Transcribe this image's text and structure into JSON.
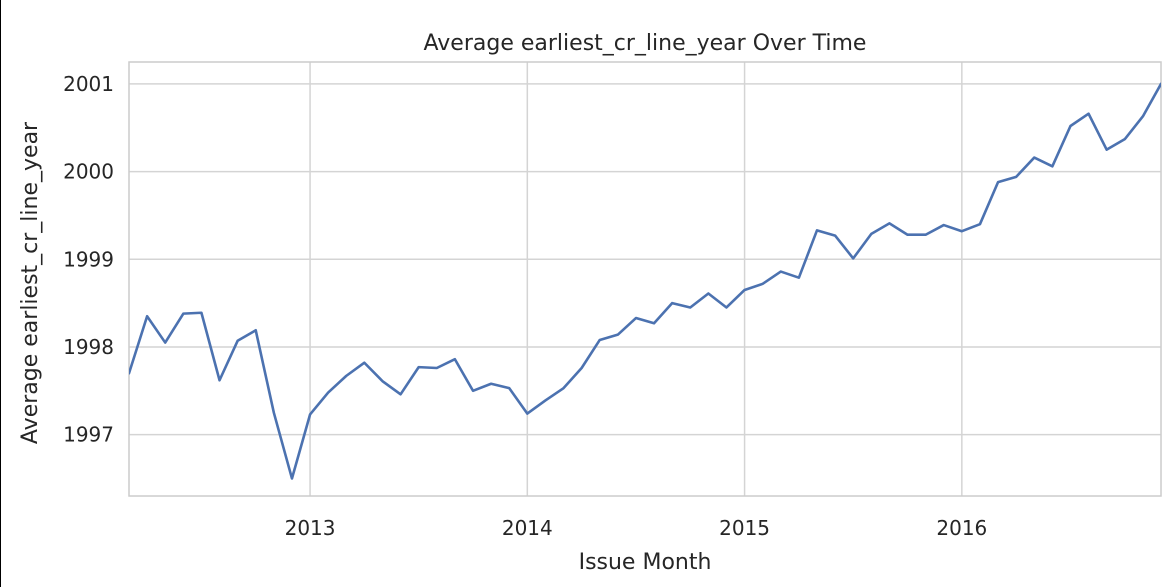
{
  "chart_data": {
    "type": "line",
    "title": "Average earliest_cr_line_year Over Time",
    "xlabel": "Issue Month",
    "ylabel": "Average earliest_cr_line_year",
    "x_tick_labels": [
      "2013",
      "2014",
      "2015",
      "2016"
    ],
    "y_tick_labels": [
      "1997",
      "1998",
      "1999",
      "2000",
      "2001"
    ],
    "x_ticks": [
      "2013-01",
      "2014-01",
      "2015-01",
      "2016-01"
    ],
    "y_ticks": [
      1997,
      1998,
      1999,
      2000,
      2001
    ],
    "xlim": [
      "2012-03",
      "2016-12"
    ],
    "ylim": [
      1996.3,
      2001.25
    ],
    "grid": true,
    "colors": {
      "series": "#4c72b0",
      "grid": "#d4d4d4",
      "text": "#262626"
    },
    "series": [
      {
        "x": [
          "2012-03",
          "2012-04",
          "2012-05",
          "2012-06",
          "2012-07",
          "2012-08",
          "2012-09",
          "2012-10",
          "2012-11",
          "2012-12",
          "2013-01",
          "2013-02",
          "2013-03",
          "2013-04",
          "2013-05",
          "2013-06",
          "2013-07",
          "2013-08",
          "2013-09",
          "2013-10",
          "2013-11",
          "2013-12",
          "2014-01",
          "2014-02",
          "2014-03",
          "2014-04",
          "2014-05",
          "2014-06",
          "2014-07",
          "2014-08",
          "2014-09",
          "2014-10",
          "2014-11",
          "2014-12",
          "2015-01",
          "2015-02",
          "2015-03",
          "2015-04",
          "2015-05",
          "2015-06",
          "2015-07",
          "2015-08",
          "2015-09",
          "2015-10",
          "2015-11",
          "2015-12",
          "2016-01",
          "2016-02",
          "2016-03",
          "2016-04",
          "2016-05",
          "2016-06",
          "2016-07",
          "2016-08",
          "2016-09",
          "2016-10",
          "2016-11",
          "2016-12"
        ],
        "values": [
          1997.7,
          1998.35,
          1998.05,
          1998.38,
          1998.39,
          1997.62,
          1998.07,
          1998.19,
          1997.25,
          1996.5,
          1997.23,
          1997.48,
          1997.67,
          1997.82,
          1997.61,
          1997.46,
          1997.77,
          1997.76,
          1997.86,
          1997.5,
          1997.58,
          1997.53,
          1997.24,
          1997.39,
          1997.53,
          1997.76,
          1998.08,
          1998.14,
          1998.33,
          1998.27,
          1998.5,
          1998.45,
          1998.61,
          1998.45,
          1998.65,
          1998.72,
          1998.86,
          1998.79,
          1999.33,
          1999.27,
          1999.01,
          1999.29,
          1999.41,
          1999.28,
          1999.28,
          1999.39,
          1999.32,
          1999.4,
          1999.88,
          1999.94,
          2000.16,
          2000.06,
          2000.52,
          2000.66,
          2000.25,
          2000.37,
          2000.63,
          2001.0
        ]
      }
    ]
  }
}
